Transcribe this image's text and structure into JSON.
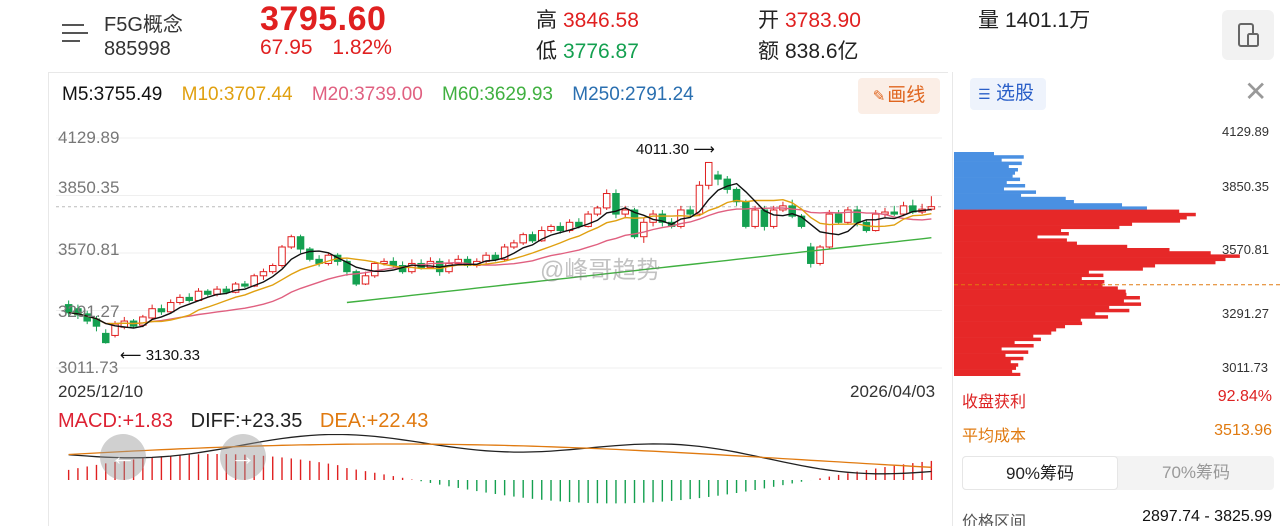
{
  "header": {
    "stock_name": "F5G概念",
    "stock_code": "885998",
    "price": "3795.60",
    "change_abs": "67.95",
    "change_pct": "1.82%",
    "high_label": "高",
    "high_value": "3846.58",
    "low_label": "低",
    "low_value": "3776.87",
    "open_label": "开",
    "open_value": "3783.90",
    "amount_label": "额",
    "amount_value": "838.6亿",
    "volume_label": "量",
    "volume_value": "1401.1万"
  },
  "ma": {
    "m5": "M5:3755.49",
    "m10": "M10:3707.44",
    "m20": "M20:3739.00",
    "m60": "M60:3629.93",
    "m250": "M250:2791.24"
  },
  "toolbar": {
    "draw_label": "画线"
  },
  "y_axis": {
    "t1": "4129.89",
    "t2": "3850.35",
    "t3": "3570.81",
    "t4": "3291.27",
    "t5": "3011.73"
  },
  "dates": {
    "start": "2025/12/10",
    "end": "2026/04/03"
  },
  "annotations": {
    "high_mark": "4011.30",
    "low_mark": "3130.33"
  },
  "watermark": "@峰哥趋势",
  "macd": {
    "macd": "MACD:+1.83",
    "diff": "DIFF:+23.35",
    "dea": "DEA:+22.43"
  },
  "right_panel": {
    "select_label": "选股",
    "profit_label": "收盘获利",
    "profit_value": "92.84%",
    "avg_cost_label": "平均成本",
    "avg_cost_value": "3513.96",
    "tab_90": "90%筹码",
    "tab_70": "70%筹码",
    "range_label": "价格区间",
    "range_value": "2897.74 - 3825.99"
  },
  "colors": {
    "up": "#e02020",
    "down": "#14a050",
    "m5": "#111111",
    "m10": "#e0a010",
    "m20": "#e06080",
    "m60": "#40b040",
    "m250": "#2a6fb0",
    "profit_chip": "#e62828",
    "loss_chip": "#4a90e2"
  },
  "chart_data": {
    "type": "candlestick",
    "ylim": [
      3011.73,
      4129.89
    ],
    "yticks": [
      4129.89,
      3850.35,
      3570.81,
      3291.27,
      3011.73
    ],
    "x_start": "2025/12/10",
    "x_end": "2026/04/03",
    "current_price": 3795.6,
    "high_annotation": 4011.3,
    "low_annotation": 3130.33,
    "candles": [
      [
        3320,
        3280,
        3340,
        3260
      ],
      [
        3300,
        3270,
        3320,
        3250
      ],
      [
        3275,
        3240,
        3290,
        3225
      ],
      [
        3250,
        3215,
        3265,
        3190
      ],
      [
        3180,
        3135,
        3200,
        3130
      ],
      [
        3170,
        3225,
        3240,
        3160
      ],
      [
        3210,
        3240,
        3260,
        3200
      ],
      [
        3240,
        3215,
        3250,
        3205
      ],
      [
        3220,
        3260,
        3270,
        3210
      ],
      [
        3255,
        3300,
        3320,
        3250
      ],
      [
        3300,
        3285,
        3320,
        3270
      ],
      [
        3285,
        3330,
        3345,
        3280
      ],
      [
        3330,
        3355,
        3370,
        3320
      ],
      [
        3355,
        3340,
        3375,
        3330
      ],
      [
        3340,
        3385,
        3400,
        3335
      ],
      [
        3385,
        3370,
        3395,
        3360
      ],
      [
        3370,
        3395,
        3410,
        3360
      ],
      [
        3395,
        3380,
        3410,
        3370
      ],
      [
        3380,
        3420,
        3430,
        3375
      ],
      [
        3420,
        3410,
        3435,
        3400
      ],
      [
        3410,
        3460,
        3470,
        3405
      ],
      [
        3460,
        3480,
        3495,
        3440
      ],
      [
        3480,
        3510,
        3520,
        3470
      ],
      [
        3510,
        3600,
        3610,
        3500
      ],
      [
        3600,
        3650,
        3660,
        3590
      ],
      [
        3650,
        3590,
        3660,
        3570
      ],
      [
        3590,
        3540,
        3600,
        3530
      ],
      [
        3540,
        3520,
        3560,
        3505
      ],
      [
        3520,
        3560,
        3570,
        3510
      ],
      [
        3560,
        3530,
        3570,
        3510
      ],
      [
        3530,
        3480,
        3540,
        3460
      ],
      [
        3480,
        3420,
        3490,
        3410
      ],
      [
        3420,
        3460,
        3480,
        3415
      ],
      [
        3460,
        3520,
        3530,
        3450
      ],
      [
        3520,
        3530,
        3545,
        3510
      ],
      [
        3530,
        3510,
        3550,
        3500
      ],
      [
        3510,
        3480,
        3530,
        3470
      ],
      [
        3480,
        3520,
        3540,
        3470
      ],
      [
        3520,
        3500,
        3540,
        3490
      ],
      [
        3500,
        3530,
        3550,
        3495
      ],
      [
        3530,
        3480,
        3545,
        3460
      ],
      [
        3480,
        3520,
        3540,
        3470
      ],
      [
        3520,
        3540,
        3560,
        3510
      ],
      [
        3540,
        3510,
        3555,
        3500
      ],
      [
        3510,
        3530,
        3545,
        3500
      ],
      [
        3530,
        3560,
        3575,
        3520
      ],
      [
        3560,
        3540,
        3575,
        3530
      ],
      [
        3540,
        3600,
        3615,
        3530
      ],
      [
        3600,
        3620,
        3635,
        3590
      ],
      [
        3620,
        3660,
        3670,
        3610
      ],
      [
        3660,
        3630,
        3675,
        3620
      ],
      [
        3630,
        3680,
        3700,
        3625
      ],
      [
        3680,
        3700,
        3710,
        3670
      ],
      [
        3700,
        3680,
        3720,
        3665
      ],
      [
        3680,
        3720,
        3735,
        3670
      ],
      [
        3720,
        3700,
        3740,
        3690
      ],
      [
        3700,
        3760,
        3775,
        3695
      ],
      [
        3760,
        3790,
        3800,
        3750
      ],
      [
        3790,
        3860,
        3880,
        3780
      ],
      [
        3860,
        3760,
        3880,
        3740
      ],
      [
        3760,
        3780,
        3800,
        3740
      ],
      [
        3780,
        3650,
        3790,
        3640
      ],
      [
        3650,
        3720,
        3740,
        3620
      ],
      [
        3720,
        3760,
        3780,
        3700
      ],
      [
        3760,
        3720,
        3780,
        3700
      ],
      [
        3720,
        3700,
        3740,
        3690
      ],
      [
        3700,
        3780,
        3800,
        3690
      ],
      [
        3780,
        3760,
        3800,
        3750
      ],
      [
        3760,
        3900,
        3920,
        3750
      ],
      [
        3900,
        4011,
        4011,
        3880
      ],
      [
        3950,
        3930,
        3970,
        3900
      ],
      [
        3930,
        3880,
        3945,
        3860
      ],
      [
        3880,
        3820,
        3890,
        3800
      ],
      [
        3820,
        3700,
        3830,
        3690
      ],
      [
        3700,
        3780,
        3800,
        3690
      ],
      [
        3780,
        3700,
        3800,
        3680
      ],
      [
        3700,
        3780,
        3800,
        3690
      ],
      [
        3780,
        3800,
        3820,
        3770
      ],
      [
        3800,
        3750,
        3830,
        3740
      ],
      [
        3750,
        3700,
        3760,
        3690
      ],
      [
        3600,
        3520,
        3620,
        3500
      ],
      [
        3520,
        3600,
        3610,
        3510
      ],
      [
        3600,
        3760,
        3780,
        3590
      ],
      [
        3760,
        3720,
        3780,
        3710
      ],
      [
        3720,
        3780,
        3795,
        3710
      ],
      [
        3780,
        3720,
        3800,
        3700
      ],
      [
        3720,
        3680,
        3730,
        3670
      ],
      [
        3680,
        3760,
        3780,
        3675
      ],
      [
        3760,
        3770,
        3790,
        3745
      ],
      [
        3770,
        3760,
        3800,
        3750
      ],
      [
        3760,
        3800,
        3820,
        3750
      ],
      [
        3800,
        3770,
        3830,
        3760
      ],
      [
        3770,
        3784,
        3810,
        3760
      ],
      [
        3784,
        3796,
        3847,
        3777
      ]
    ],
    "indicators": {
      "MACD": 1.83,
      "DIFF": 23.35,
      "DEA": 22.43
    }
  }
}
